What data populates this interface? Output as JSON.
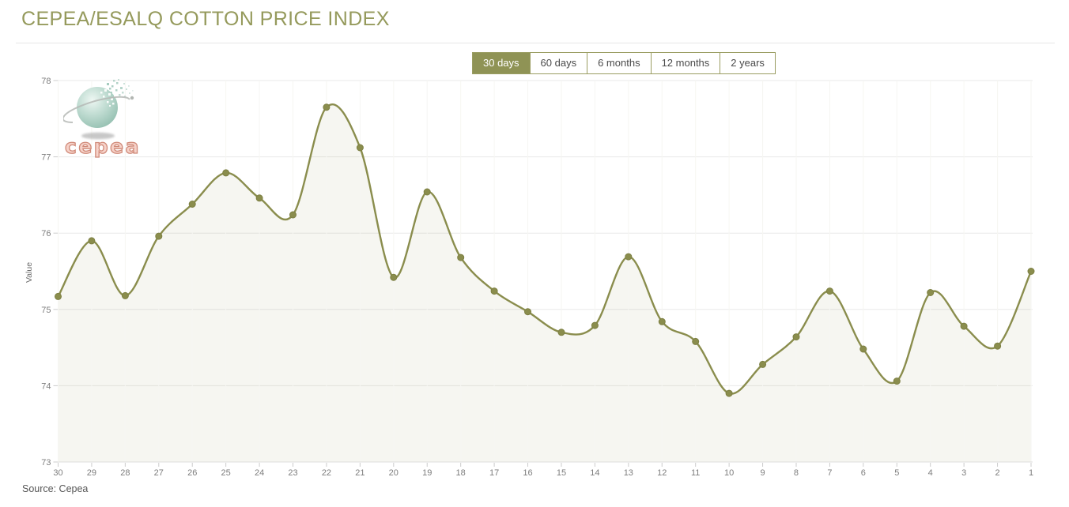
{
  "page_title": "CEPEA/ESALQ COTTON PRICE INDEX",
  "source_label": "Source: Cepea",
  "logo": {
    "text": "cepea"
  },
  "tabs": {
    "items": [
      {
        "label": "30 days",
        "selected": true
      },
      {
        "label": "60 days",
        "selected": false
      },
      {
        "label": "6 months",
        "selected": false
      },
      {
        "label": "12 months",
        "selected": false
      },
      {
        "label": "2 years",
        "selected": false
      }
    ]
  },
  "colors": {
    "accent_olive": "#8A8D4D",
    "title_text": "#959A5C",
    "tab_selected_bg": "#8F9355",
    "tab_border": "#9A9D62",
    "area_fill": "rgba(139,143,77,0.08)",
    "axis_text": "#7D7D7D",
    "grid_line": "#E9E9E9"
  },
  "chart_data": {
    "type": "area",
    "title": "CEPEA/ESALQ COTTON PRICE INDEX",
    "xlabel": "",
    "ylabel": "Value",
    "categories": [
      "30",
      "29",
      "28",
      "27",
      "26",
      "25",
      "24",
      "23",
      "22",
      "21",
      "20",
      "19",
      "18",
      "17",
      "16",
      "15",
      "14",
      "13",
      "12",
      "11",
      "10",
      "9",
      "8",
      "7",
      "6",
      "5",
      "4",
      "3",
      "2",
      "1"
    ],
    "values": [
      75.17,
      75.9,
      75.18,
      75.96,
      76.38,
      76.79,
      76.46,
      76.24,
      77.65,
      77.12,
      75.42,
      76.54,
      75.68,
      75.24,
      74.97,
      74.7,
      74.79,
      75.69,
      74.84,
      74.58,
      73.9,
      74.28,
      74.64,
      75.24,
      74.48,
      74.06,
      75.22,
      74.78,
      74.52,
      75.5
    ],
    "ylim": [
      73,
      78
    ],
    "y_ticks": [
      73,
      74,
      75,
      76,
      77,
      78
    ],
    "grid": true,
    "legend": "none",
    "marker": "circle"
  }
}
